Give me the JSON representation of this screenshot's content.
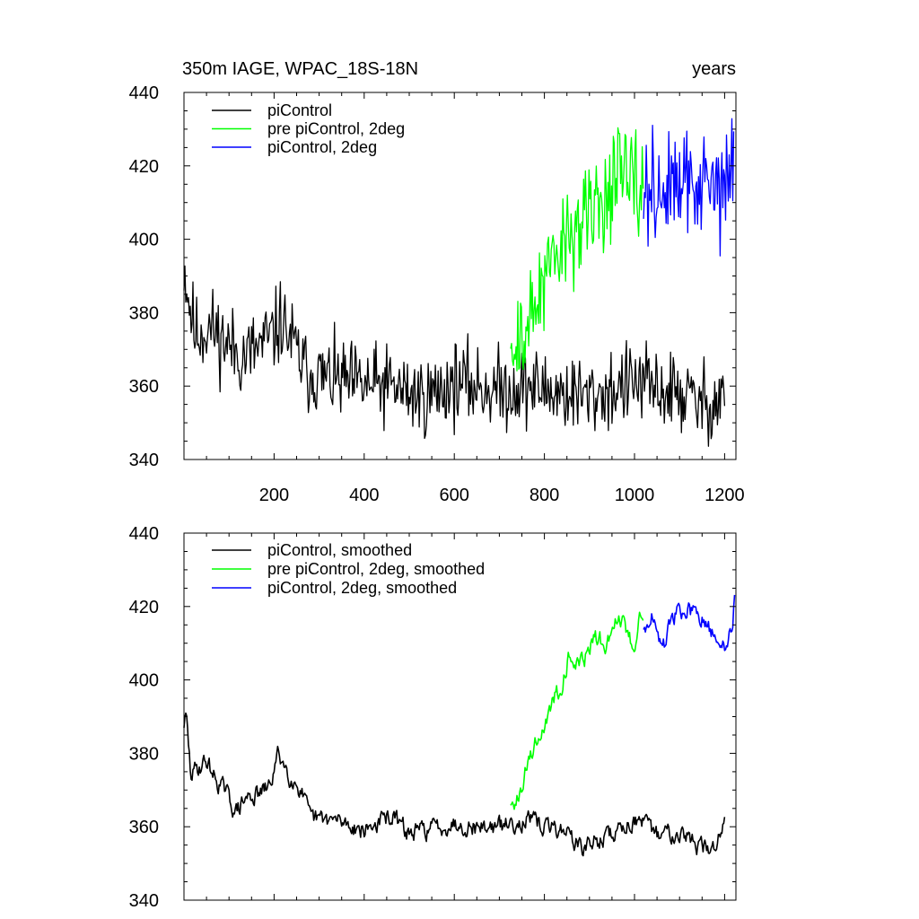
{
  "chart_data": [
    {
      "type": "line",
      "title": "350m IAGE, WPAC_18S-18N",
      "title_right": "years",
      "xlim": [
        0,
        1225
      ],
      "ylim": [
        340,
        440
      ],
      "x_ticks": [
        200,
        400,
        600,
        800,
        1000,
        1200
      ],
      "x_tick_labels": [
        "200",
        "400",
        "600",
        "800",
        "1000",
        "1200"
      ],
      "y_ticks": [
        340,
        360,
        380,
        400,
        420,
        440
      ],
      "y_tick_labels": [
        "340",
        "360",
        "380",
        "400",
        "420",
        "440"
      ],
      "legend_position": "top-left",
      "series": [
        {
          "name": "piControl",
          "color": "#000000",
          "style": "noisy",
          "noise_amplitude": 5.5,
          "anchors": [
            [
              0,
              393
            ],
            [
              10,
              384
            ],
            [
              25,
              374
            ],
            [
              60,
              376
            ],
            [
              100,
              371
            ],
            [
              130,
              368
            ],
            [
              160,
              370
            ],
            [
              200,
              374
            ],
            [
              215,
              378
            ],
            [
              240,
              372
            ],
            [
              270,
              364
            ],
            [
              320,
              362
            ],
            [
              400,
              360
            ],
            [
              460,
              360
            ],
            [
              500,
              358
            ],
            [
              540,
              357
            ],
            [
              600,
              361
            ],
            [
              650,
              360
            ],
            [
              700,
              359
            ],
            [
              760,
              360
            ],
            [
              800,
              359
            ],
            [
              850,
              358
            ],
            [
              900,
              357
            ],
            [
              950,
              359
            ],
            [
              1000,
              361
            ],
            [
              1050,
              359
            ],
            [
              1100,
              358
            ],
            [
              1150,
              355
            ],
            [
              1185,
              356
            ],
            [
              1200,
              361
            ]
          ]
        },
        {
          "name": "pre piControl, 2deg",
          "color": "#00ff00",
          "style": "noisy",
          "noise_amplitude": 7,
          "anchors": [
            [
              725,
              364
            ],
            [
              750,
              373
            ],
            [
              775,
              380
            ],
            [
              800,
              387
            ],
            [
              830,
              396
            ],
            [
              860,
              402
            ],
            [
              900,
              406
            ],
            [
              930,
              411
            ],
            [
              960,
              417
            ],
            [
              990,
              415
            ],
            [
              1005,
              413
            ],
            [
              1020,
              413
            ]
          ]
        },
        {
          "name": "piControl, 2deg",
          "color": "#0000ff",
          "style": "noisy",
          "noise_amplitude": 7,
          "anchors": [
            [
              1020,
              414
            ],
            [
              1060,
              413
            ],
            [
              1100,
              414
            ],
            [
              1140,
              415
            ],
            [
              1180,
              413
            ],
            [
              1200,
              414
            ],
            [
              1220,
              422
            ]
          ]
        }
      ]
    },
    {
      "type": "line",
      "xlim": [
        0,
        1225
      ],
      "ylim": [
        340,
        440
      ],
      "x_ticks": [
        200,
        400,
        600,
        800,
        1000,
        1200
      ],
      "y_ticks": [
        340,
        360,
        380,
        400,
        420,
        440
      ],
      "y_tick_labels": [
        "340",
        "360",
        "380",
        "400",
        "420",
        "440"
      ],
      "legend_position": "top-left",
      "series": [
        {
          "name": "piControl, smoothed",
          "color": "#000000",
          "style": "smoothed",
          "noise_amplitude": 2.6,
          "anchors": [
            [
              0,
              388
            ],
            [
              5,
              390
            ],
            [
              15,
              374
            ],
            [
              30,
              376
            ],
            [
              50,
              378
            ],
            [
              70,
              373
            ],
            [
              90,
              370
            ],
            [
              115,
              364
            ],
            [
              140,
              368
            ],
            [
              170,
              369
            ],
            [
              190,
              371
            ],
            [
              210,
              380
            ],
            [
              235,
              374
            ],
            [
              260,
              370
            ],
            [
              280,
              362
            ],
            [
              320,
              362
            ],
            [
              360,
              361
            ],
            [
              400,
              359
            ],
            [
              460,
              363
            ],
            [
              500,
              358
            ],
            [
              560,
              360
            ],
            [
              600,
              361
            ],
            [
              650,
              360
            ],
            [
              700,
              360
            ],
            [
              760,
              362
            ],
            [
              800,
              360
            ],
            [
              850,
              359
            ],
            [
              880,
              354
            ],
            [
              950,
              358
            ],
            [
              1000,
              362
            ],
            [
              1050,
              358
            ],
            [
              1100,
              359
            ],
            [
              1140,
              355
            ],
            [
              1170,
              353
            ],
            [
              1190,
              358
            ],
            [
              1200,
              363
            ]
          ]
        },
        {
          "name": "pre piControl, 2deg, smoothed",
          "color": "#00ff00",
          "style": "smoothed",
          "noise_amplitude": 2.6,
          "anchors": [
            [
              725,
              365
            ],
            [
              750,
              372
            ],
            [
              770,
              380
            ],
            [
              790,
              385
            ],
            [
              810,
              391
            ],
            [
              840,
              400
            ],
            [
              855,
              407
            ],
            [
              880,
              404
            ],
            [
              910,
              411
            ],
            [
              940,
              410
            ],
            [
              965,
              418
            ],
            [
              985,
              413
            ],
            [
              1000,
              408
            ],
            [
              1010,
              420
            ],
            [
              1020,
              414
            ]
          ]
        },
        {
          "name": "piControl, 2deg, smoothed",
          "color": "#0000ff",
          "style": "smoothed",
          "noise_amplitude": 2.6,
          "anchors": [
            [
              1020,
              414
            ],
            [
              1040,
              418
            ],
            [
              1060,
              408
            ],
            [
              1090,
              418
            ],
            [
              1120,
              419
            ],
            [
              1150,
              416
            ],
            [
              1180,
              411
            ],
            [
              1200,
              409
            ],
            [
              1215,
              414
            ],
            [
              1222,
              422
            ]
          ]
        }
      ]
    }
  ]
}
